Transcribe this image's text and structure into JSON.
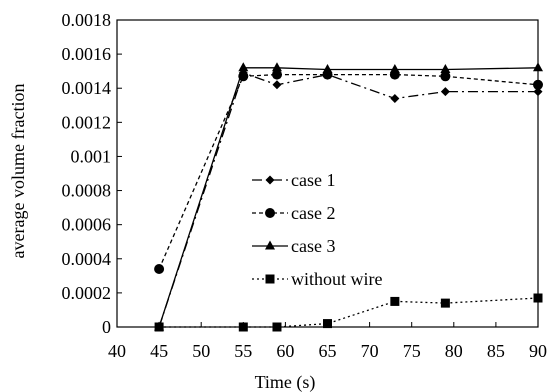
{
  "chart_data": {
    "type": "line",
    "xlabel": "Time (s)",
    "ylabel": "average volume fraction",
    "xlim": [
      40,
      90
    ],
    "ylim": [
      0,
      0.0018
    ],
    "x_ticks": [
      "40",
      "45",
      "50",
      "55",
      "60",
      "65",
      "70",
      "75",
      "80",
      "85",
      "90"
    ],
    "y_ticks": [
      "0",
      "0.0002",
      "0.0004",
      "0.0006",
      "0.0008",
      "0.001",
      "0.0012",
      "0.0014",
      "0.0016",
      "0.0018"
    ],
    "grid": false,
    "legend_position": "center",
    "series": [
      {
        "name": "case 1",
        "marker": "diamond",
        "dash": "long-dash-dot",
        "x": [
          45,
          55,
          59,
          65,
          73,
          79,
          90
        ],
        "y": [
          0,
          0.00149,
          0.00142,
          0.00148,
          0.00134,
          0.00138,
          0.00138
        ]
      },
      {
        "name": "case 2",
        "marker": "circle",
        "dash": "short-dash",
        "x": [
          45,
          55,
          59,
          65,
          73,
          79,
          90
        ],
        "y": [
          0.00034,
          0.00147,
          0.00148,
          0.00148,
          0.00148,
          0.00147,
          0.00142
        ]
      },
      {
        "name": "case 3",
        "marker": "triangle",
        "dash": "solid",
        "x": [
          45,
          55,
          59,
          65,
          73,
          79,
          90
        ],
        "y": [
          0,
          0.00152,
          0.00152,
          0.00151,
          0.00151,
          0.00151,
          0.00152
        ]
      },
      {
        "name": "without wire",
        "marker": "square",
        "dash": "dotted",
        "x": [
          45,
          55,
          59,
          65,
          73,
          79,
          90
        ],
        "y": [
          0,
          0,
          0,
          2e-05,
          0.00015,
          0.00014,
          0.00017
        ]
      }
    ]
  }
}
